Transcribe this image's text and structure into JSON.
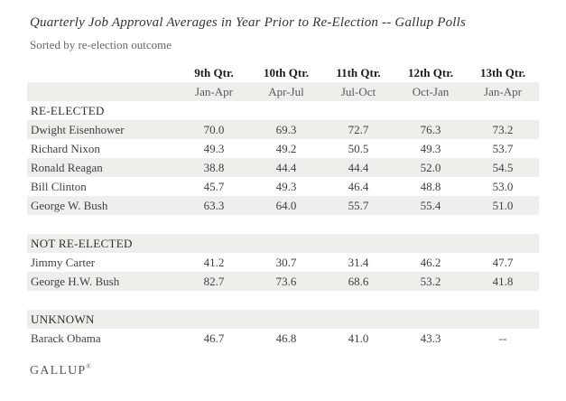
{
  "header": {
    "title": "Quarterly Job Approval Averages in Year Prior to Re-Election -- Gallup Polls",
    "subtitle": "Sorted by re-election outcome"
  },
  "chart_data": {
    "type": "table",
    "title": "Quarterly Job Approval Averages in Year Prior to Re-Election -- Gallup Polls",
    "subtitle": "Sorted by re-election outcome",
    "columns": [
      {
        "label": "9th Qtr.",
        "sub": "Jan-Apr"
      },
      {
        "label": "10th Qtr.",
        "sub": "Apr-Jul"
      },
      {
        "label": "11th Qtr.",
        "sub": "Jul-Oct"
      },
      {
        "label": "12th Qtr.",
        "sub": "Oct-Jan"
      },
      {
        "label": "13th Qtr.",
        "sub": "Jan-Apr"
      }
    ],
    "sections": [
      {
        "label": "RE-ELECTED",
        "rows": [
          {
            "name": "Dwight Eisenhower",
            "values": [
              "70.0",
              "69.3",
              "72.7",
              "76.3",
              "73.2"
            ]
          },
          {
            "name": "Richard Nixon",
            "values": [
              "49.3",
              "49.2",
              "50.5",
              "49.3",
              "53.7"
            ]
          },
          {
            "name": "Ronald Reagan",
            "values": [
              "38.8",
              "44.4",
              "44.4",
              "52.0",
              "54.5"
            ]
          },
          {
            "name": "Bill Clinton",
            "values": [
              "45.7",
              "49.3",
              "46.4",
              "48.8",
              "53.0"
            ]
          },
          {
            "name": "George W. Bush",
            "values": [
              "63.3",
              "64.0",
              "55.7",
              "55.4",
              "51.0"
            ]
          }
        ]
      },
      {
        "label": "NOT RE-ELECTED",
        "rows": [
          {
            "name": "Jimmy Carter",
            "values": [
              "41.2",
              "30.7",
              "31.4",
              "46.2",
              "47.7"
            ]
          },
          {
            "name": "George H.W. Bush",
            "values": [
              "82.7",
              "73.6",
              "68.6",
              "53.2",
              "41.8"
            ]
          }
        ]
      },
      {
        "label": "UNKNOWN",
        "rows": [
          {
            "name": "Barack Obama",
            "values": [
              "46.7",
              "46.8",
              "41.0",
              "43.3",
              "--"
            ]
          }
        ]
      }
    ],
    "layout": {
      "grid": "off",
      "striped_rows": true,
      "value_alignment": "center"
    }
  },
  "footer": {
    "brand": "GALLUP",
    "trademark": "®"
  },
  "colors": {
    "stripe": "#eeeeea",
    "title_text": "#333333",
    "subtitle_text": "#666666",
    "body_text": "#404040",
    "header_text": "#1b1b1b",
    "brand_text": "#58585c"
  }
}
